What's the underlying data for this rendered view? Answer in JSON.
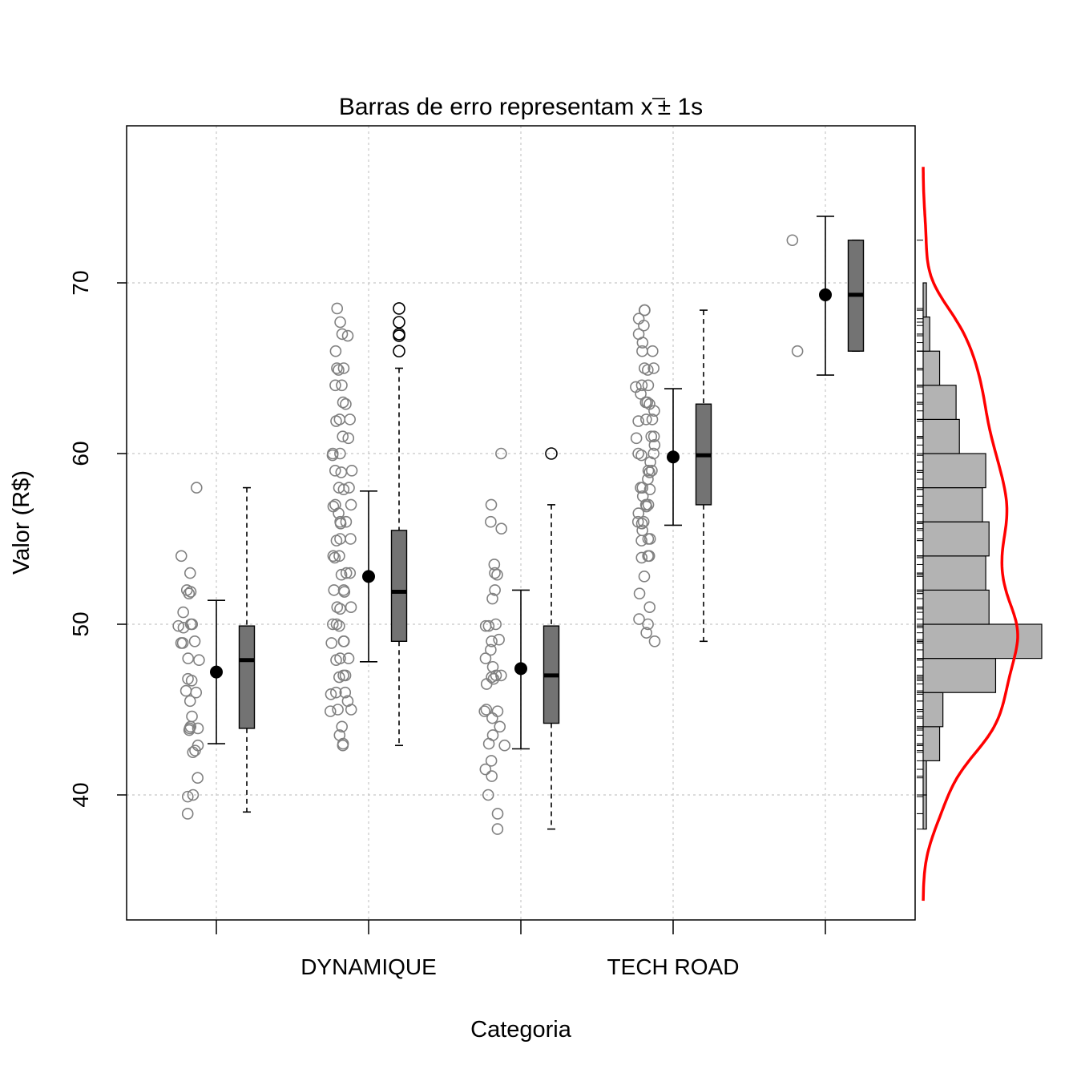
{
  "chart_data": {
    "type": "scatter",
    "title": "Barras de erro representam x̄ ± 1s",
    "title_parts": {
      "prefix": "Barras de erro representam ",
      "symbol": "x",
      "suffix": "± 1s"
    },
    "xlabel": "Categoria",
    "ylabel": "Valor (R$)",
    "ylim": [
      33.5,
      80
    ],
    "yticks": [
      40,
      50,
      60,
      70
    ],
    "grid": true,
    "categories": [
      "",
      "DYNAMIQUE",
      "",
      "TECH ROAD",
      ""
    ],
    "groups": [
      {
        "mean": 47.2,
        "sd_low": 43.0,
        "sd_high": 51.4,
        "box": {
          "min": 39.0,
          "q1": 43.9,
          "median": 47.9,
          "q3": 49.9,
          "max": 58.0,
          "outliers": []
        },
        "points": [
          58.0,
          54.0,
          53.0,
          52.0,
          51.9,
          51.8,
          50.7,
          50.0,
          50.0,
          49.9,
          49.8,
          49.0,
          48.9,
          48.9,
          48.0,
          47.9,
          46.8,
          46.7,
          46.1,
          46.0,
          45.5,
          44.6,
          44.0,
          43.9,
          43.9,
          43.8,
          42.9,
          42.6,
          42.5,
          41.0,
          40.0,
          39.9,
          38.9
        ]
      },
      {
        "mean": 52.8,
        "sd_low": 47.8,
        "sd_high": 57.8,
        "box": {
          "min": 42.9,
          "q1": 49.0,
          "median": 51.9,
          "q3": 55.5,
          "max": 65.0,
          "outliers": [
            68.5,
            67.7,
            67.0,
            66.9,
            66.0
          ]
        },
        "points": [
          68.5,
          67.7,
          67.0,
          66.9,
          66.0,
          65.0,
          65.0,
          64.9,
          64.0,
          64.0,
          63.0,
          62.9,
          62.0,
          62.0,
          61.9,
          61.0,
          60.9,
          60.0,
          60.0,
          59.9,
          59.0,
          59.0,
          58.9,
          58.0,
          58.0,
          57.9,
          57.0,
          57.0,
          56.9,
          56.5,
          56.0,
          56.0,
          55.9,
          55.0,
          55.0,
          54.9,
          54.0,
          54.0,
          53.9,
          53.0,
          53.0,
          52.9,
          52.0,
          52.0,
          51.9,
          51.0,
          51.0,
          50.9,
          50.0,
          50.0,
          49.9,
          49.0,
          49.0,
          48.9,
          48.0,
          48.0,
          47.9,
          47.0,
          47.0,
          46.9,
          46.0,
          46.0,
          45.9,
          45.5,
          45.0,
          45.0,
          44.9,
          44.0,
          43.5,
          43.0,
          42.9
        ]
      },
      {
        "mean": 47.4,
        "sd_low": 42.7,
        "sd_high": 52.0,
        "box": {
          "min": 38.0,
          "q1": 44.2,
          "median": 47.0,
          "q3": 49.9,
          "max": 57.0,
          "outliers": [
            60.0
          ]
        },
        "points": [
          60.0,
          57.0,
          56.0,
          55.6,
          53.5,
          53.0,
          52.9,
          52.0,
          51.5,
          50.0,
          49.9,
          49.9,
          49.1,
          49.0,
          48.5,
          48.0,
          47.5,
          47.0,
          47.0,
          46.9,
          46.8,
          46.5,
          45.0,
          44.9,
          44.9,
          44.5,
          44.0,
          43.5,
          43.0,
          42.9,
          42.0,
          41.5,
          41.1,
          40.0,
          38.9,
          38.0
        ]
      },
      {
        "mean": 59.8,
        "sd_low": 55.8,
        "sd_high": 63.8,
        "box": {
          "min": 49.0,
          "q1": 57.0,
          "median": 59.9,
          "q3": 62.9,
          "max": 68.4,
          "outliers": []
        },
        "points": [
          68.4,
          68.4,
          67.9,
          67.5,
          67.0,
          66.5,
          66.0,
          66.0,
          65.0,
          65.0,
          64.9,
          64.0,
          64.0,
          63.9,
          63.5,
          63.0,
          63.0,
          62.9,
          62.5,
          62.0,
          62.0,
          61.9,
          61.0,
          61.0,
          60.9,
          60.5,
          60.0,
          60.0,
          59.9,
          59.5,
          59.0,
          59.0,
          58.9,
          58.5,
          58.0,
          58.0,
          57.9,
          57.5,
          57.0,
          57.0,
          56.9,
          56.5,
          56.0,
          56.0,
          55.9,
          55.5,
          55.0,
          55.0,
          54.9,
          54.0,
          54.0,
          53.9,
          52.8,
          51.8,
          51.0,
          50.3,
          50.0,
          49.5,
          49.0
        ]
      },
      {
        "mean": 69.3,
        "sd_low": 64.6,
        "sd_high": 73.9,
        "box": {
          "min": 66.0,
          "q1": 66.0,
          "median": 69.3,
          "q3": 72.5,
          "max": 72.5,
          "outliers": []
        },
        "points": [
          72.5,
          66.0
        ]
      }
    ],
    "histogram": {
      "bins": [
        {
          "from": 38,
          "to": 40,
          "count": 1
        },
        {
          "from": 40,
          "to": 42,
          "count": 1
        },
        {
          "from": 42,
          "to": 44,
          "count": 5
        },
        {
          "from": 44,
          "to": 46,
          "count": 6
        },
        {
          "from": 46,
          "to": 48,
          "count": 22
        },
        {
          "from": 48,
          "to": 50,
          "count": 36
        },
        {
          "from": 50,
          "to": 52,
          "count": 20
        },
        {
          "from": 52,
          "to": 54,
          "count": 19
        },
        {
          "from": 54,
          "to": 56,
          "count": 20
        },
        {
          "from": 56,
          "to": 58,
          "count": 18
        },
        {
          "from": 58,
          "to": 60,
          "count": 19
        },
        {
          "from": 60,
          "to": 62,
          "count": 11
        },
        {
          "from": 62,
          "to": 64,
          "count": 10
        },
        {
          "from": 64,
          "to": 66,
          "count": 5
        },
        {
          "from": 66,
          "to": 68,
          "count": 2
        },
        {
          "from": 68,
          "to": 70,
          "count": 1
        }
      ],
      "density_color": "#ff0000",
      "bar_color": "#b3b3b3"
    },
    "colors": {
      "points": "#808080",
      "box_fill": "#737373",
      "grid": "#c8c8c8"
    }
  }
}
